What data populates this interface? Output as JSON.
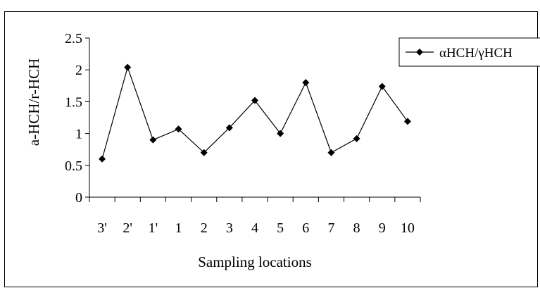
{
  "chart_data": {
    "type": "line",
    "title": "",
    "xlabel": "Sampling locations",
    "ylabel": "a-HCH/r-HCH",
    "categories": [
      "3'",
      "2'",
      "1'",
      "1",
      "2",
      "3",
      "4",
      "5",
      "6",
      "7",
      "8",
      "9",
      "10"
    ],
    "series": [
      {
        "name": "αHCH/γHCH",
        "values": [
          0.6,
          2.04,
          0.9,
          1.07,
          0.7,
          1.09,
          1.52,
          1.0,
          1.8,
          0.7,
          0.92,
          1.74,
          1.19
        ],
        "color": "#000000",
        "marker": "diamond"
      }
    ],
    "ylim": [
      0,
      2.5
    ],
    "yticks": [
      "0",
      "0.5",
      "1",
      "1.5",
      "2",
      "2.5"
    ],
    "grid": false,
    "legend": "top-right"
  }
}
